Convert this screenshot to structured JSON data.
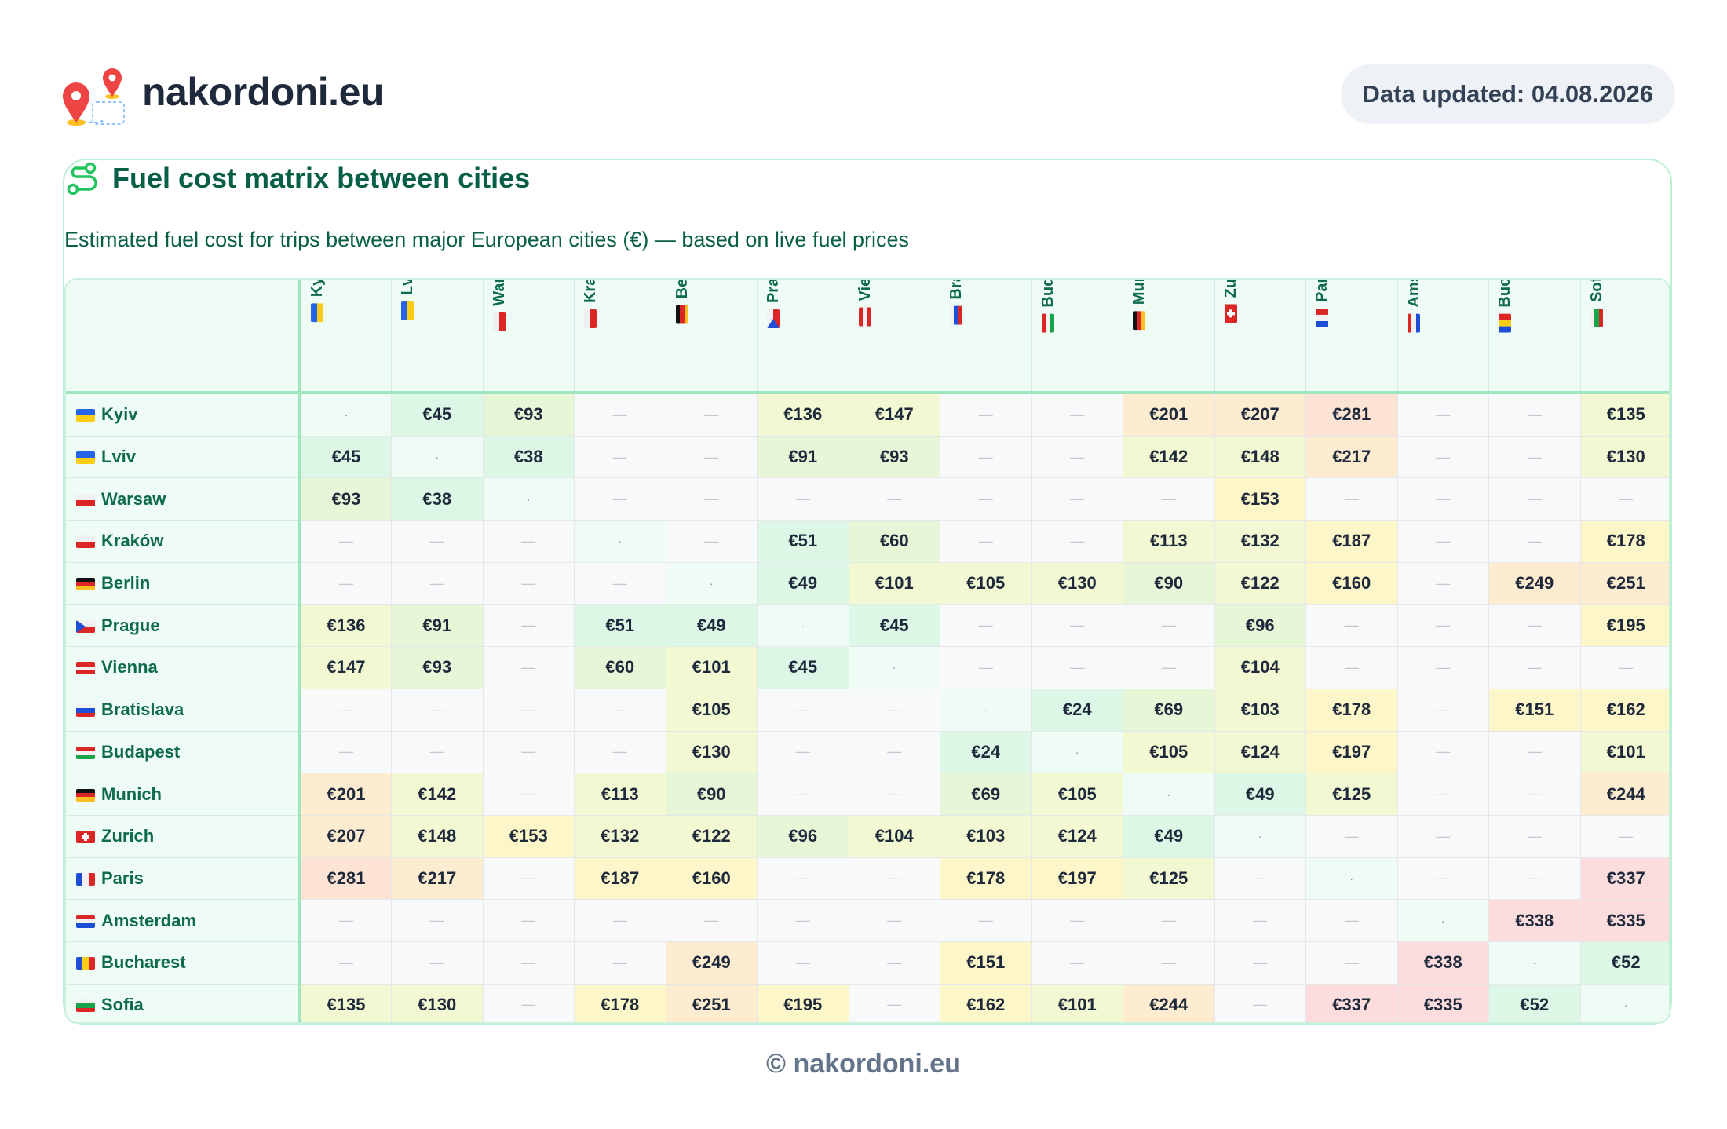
{
  "brand": "nakordoni.eu",
  "updated_label": "Data updated: 04.08.2026",
  "card": {
    "title": "Fuel cost matrix between cities",
    "subtitle": "Estimated fuel cost for trips between major European cities (€) — based on live fuel prices"
  },
  "footer": "© nakordoni.eu",
  "empty_mark": "—",
  "diag_mark": "·",
  "colors": {
    "green_light": "#dcf7e6",
    "green_mid": "#e6f6d6",
    "yellow_green": "#f1f8d2",
    "yellow": "#fdf6c8",
    "orange": "#feecd0",
    "peach": "#fde3d4",
    "pink": "#fcdcdc"
  },
  "columns": [
    {
      "label": "Kyiv",
      "flag": "ua"
    },
    {
      "label": "Lviv",
      "flag": "ua"
    },
    {
      "label": "Wars.",
      "flag": "pl"
    },
    {
      "label": "Krak.",
      "flag": "pl"
    },
    {
      "label": "Berl.",
      "flag": "de"
    },
    {
      "label": "Prag.",
      "flag": "cz"
    },
    {
      "label": "Vien.",
      "flag": "at"
    },
    {
      "label": "Brat.",
      "flag": "sk"
    },
    {
      "label": "Buda.",
      "flag": "hu"
    },
    {
      "label": "Muni.",
      "flag": "de"
    },
    {
      "label": "Zuri.",
      "flag": "ch"
    },
    {
      "label": "Paris",
      "flag": "fr"
    },
    {
      "label": "Amst.",
      "flag": "nl"
    },
    {
      "label": "Buch.",
      "flag": "ro"
    },
    {
      "label": "Sofia",
      "flag": "bg"
    }
  ],
  "rows": [
    {
      "city": "Kyiv",
      "flag": "ua",
      "costs": [
        null,
        45,
        93,
        null,
        null,
        136,
        147,
        null,
        null,
        201,
        207,
        281,
        null,
        null,
        135
      ]
    },
    {
      "city": "Lviv",
      "flag": "ua",
      "costs": [
        45,
        null,
        38,
        null,
        null,
        91,
        93,
        null,
        null,
        142,
        148,
        217,
        null,
        null,
        130
      ]
    },
    {
      "city": "Warsaw",
      "flag": "pl",
      "costs": [
        93,
        38,
        null,
        null,
        null,
        null,
        null,
        null,
        null,
        null,
        153,
        null,
        null,
        null,
        null
      ]
    },
    {
      "city": "Kraków",
      "flag": "pl",
      "costs": [
        null,
        null,
        null,
        null,
        null,
        51,
        60,
        null,
        null,
        113,
        132,
        187,
        null,
        null,
        178
      ]
    },
    {
      "city": "Berlin",
      "flag": "de",
      "costs": [
        null,
        null,
        null,
        null,
        null,
        49,
        101,
        105,
        130,
        90,
        122,
        160,
        null,
        249,
        251
      ]
    },
    {
      "city": "Prague",
      "flag": "cz",
      "costs": [
        136,
        91,
        null,
        51,
        49,
        null,
        45,
        null,
        null,
        null,
        96,
        null,
        null,
        null,
        195
      ]
    },
    {
      "city": "Vienna",
      "flag": "at",
      "costs": [
        147,
        93,
        null,
        60,
        101,
        45,
        null,
        null,
        null,
        null,
        104,
        null,
        null,
        null,
        null
      ]
    },
    {
      "city": "Bratislava",
      "flag": "sk",
      "costs": [
        null,
        null,
        null,
        null,
        105,
        null,
        null,
        null,
        24,
        69,
        103,
        178,
        null,
        151,
        162
      ]
    },
    {
      "city": "Budapest",
      "flag": "hu",
      "costs": [
        null,
        null,
        null,
        null,
        130,
        null,
        null,
        24,
        null,
        105,
        124,
        197,
        null,
        null,
        101
      ]
    },
    {
      "city": "Munich",
      "flag": "de",
      "costs": [
        201,
        142,
        null,
        113,
        90,
        null,
        null,
        69,
        105,
        null,
        49,
        125,
        null,
        null,
        244
      ]
    },
    {
      "city": "Zurich",
      "flag": "ch",
      "costs": [
        207,
        148,
        153,
        132,
        122,
        96,
        104,
        103,
        124,
        49,
        null,
        null,
        null,
        null,
        null
      ]
    },
    {
      "city": "Paris",
      "flag": "fr",
      "costs": [
        281,
        217,
        null,
        187,
        160,
        null,
        null,
        178,
        197,
        125,
        null,
        null,
        null,
        null,
        337
      ]
    },
    {
      "city": "Amsterdam",
      "flag": "nl",
      "costs": [
        null,
        null,
        null,
        null,
        null,
        null,
        null,
        null,
        null,
        null,
        null,
        null,
        null,
        338,
        335
      ]
    },
    {
      "city": "Bucharest",
      "flag": "ro",
      "costs": [
        null,
        null,
        null,
        null,
        249,
        null,
        null,
        151,
        null,
        null,
        null,
        null,
        338,
        null,
        52
      ]
    },
    {
      "city": "Sofia",
      "flag": "bg",
      "costs": [
        135,
        130,
        null,
        178,
        251,
        195,
        null,
        162,
        101,
        244,
        null,
        337,
        335,
        52,
        null
      ]
    }
  ]
}
